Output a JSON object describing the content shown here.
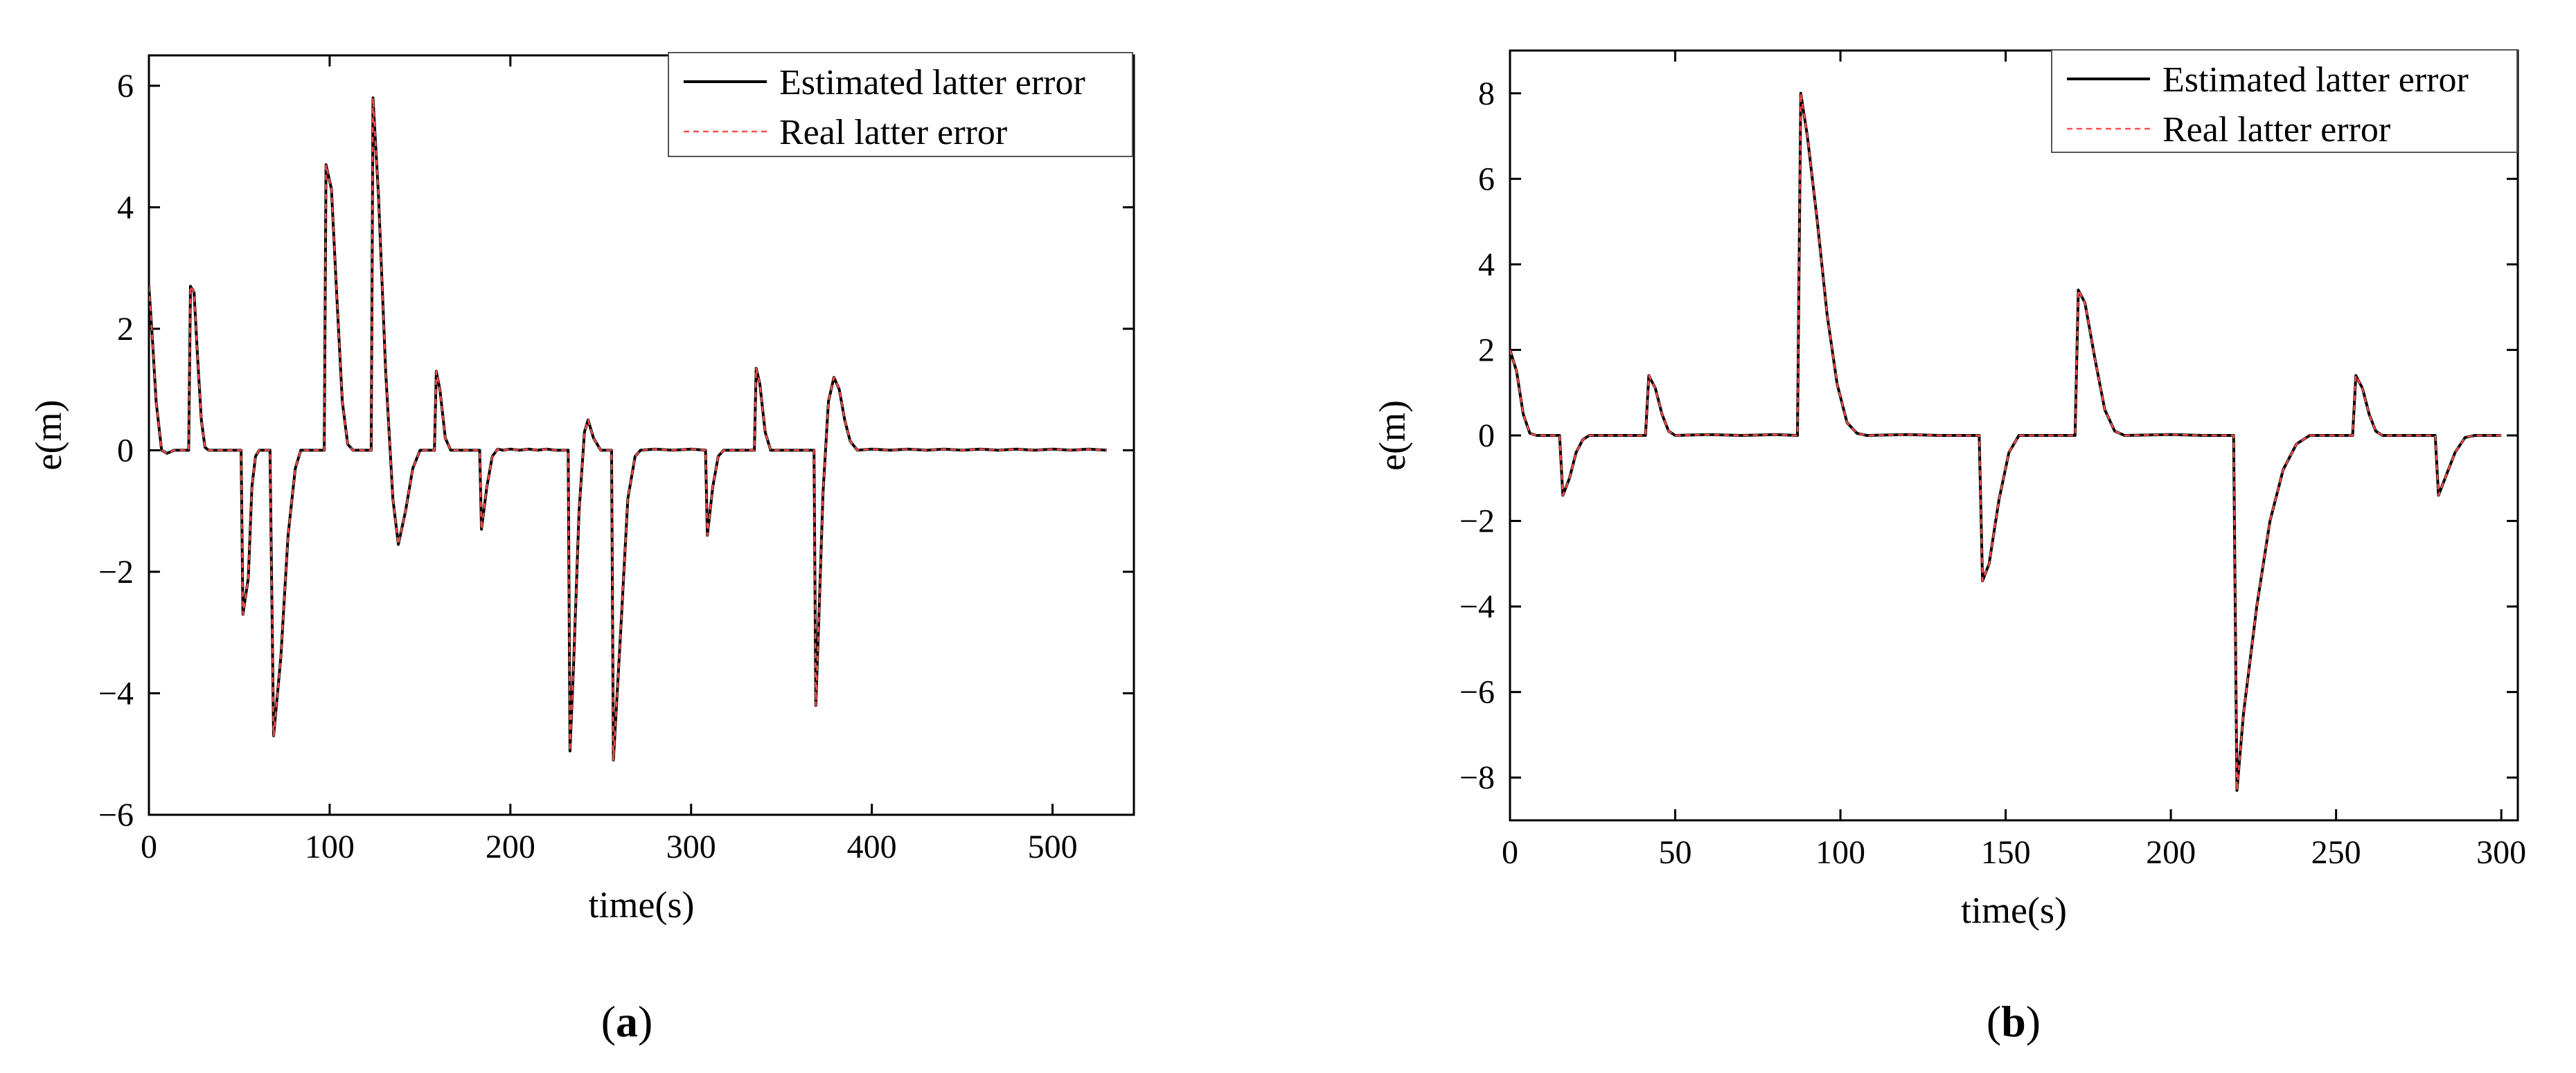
{
  "chart_data": [
    {
      "type": "line",
      "panel_label": "a",
      "xlabel": "time(s)",
      "ylabel": "e(m)",
      "xlim": [
        0,
        545
      ],
      "ylim": [
        -6,
        6.5
      ],
      "xticks": [
        0,
        100,
        200,
        300,
        400,
        500
      ],
      "yticks": [
        -6,
        -4,
        -2,
        0,
        2,
        4,
        6
      ],
      "grid": false,
      "legend_position": "top-right",
      "series": [
        {
          "name": "Estimated latter error",
          "color": "#000000",
          "dash": "solid",
          "points": [
            [
              0,
              2.7
            ],
            [
              2,
              1.8
            ],
            [
              4,
              0.8
            ],
            [
              7,
              0.0
            ],
            [
              10,
              -0.05
            ],
            [
              14,
              0.0
            ],
            [
              22,
              0.0
            ],
            [
              23,
              2.7
            ],
            [
              25,
              2.6
            ],
            [
              27,
              1.5
            ],
            [
              29,
              0.5
            ],
            [
              31,
              0.05
            ],
            [
              33,
              0.0
            ],
            [
              51,
              0.0
            ],
            [
              52,
              -2.7
            ],
            [
              55,
              -2.1
            ],
            [
              57,
              -0.6
            ],
            [
              59,
              -0.1
            ],
            [
              61,
              0.0
            ],
            [
              67,
              0.0
            ],
            [
              69,
              -4.7
            ],
            [
              73,
              -3.4
            ],
            [
              77,
              -1.4
            ],
            [
              81,
              -0.3
            ],
            [
              84,
              0.0
            ],
            [
              97,
              0.0
            ],
            [
              98,
              4.7
            ],
            [
              101,
              4.3
            ],
            [
              104,
              2.5
            ],
            [
              107,
              0.8
            ],
            [
              110,
              0.1
            ],
            [
              113,
              0.0
            ],
            [
              123,
              0.0
            ],
            [
              124,
              5.8
            ],
            [
              127,
              4.2
            ],
            [
              131,
              1.3
            ],
            [
              135,
              -0.8
            ],
            [
              138,
              -1.55
            ],
            [
              142,
              -1.0
            ],
            [
              146,
              -0.3
            ],
            [
              150,
              0.0
            ],
            [
              158,
              0.0
            ],
            [
              159,
              1.3
            ],
            [
              161,
              1.0
            ],
            [
              164,
              0.2
            ],
            [
              167,
              0.0
            ],
            [
              183,
              0.0
            ],
            [
              184,
              -1.3
            ],
            [
              187,
              -0.6
            ],
            [
              190,
              -0.1
            ],
            [
              193,
              0.02
            ],
            [
              196,
              0.0
            ],
            [
              200,
              0.02
            ],
            [
              205,
              0.0
            ],
            [
              210,
              0.02
            ],
            [
              215,
              0.0
            ],
            [
              220,
              0.02
            ],
            [
              225,
              0.0
            ],
            [
              232,
              0.0
            ],
            [
              233,
              -4.95
            ],
            [
              235,
              -3.5
            ],
            [
              238,
              -1.0
            ],
            [
              241,
              0.3
            ],
            [
              243,
              0.5
            ],
            [
              246,
              0.2
            ],
            [
              250,
              0.0
            ],
            [
              256,
              0.0
            ],
            [
              257,
              -5.1
            ],
            [
              261,
              -3.0
            ],
            [
              265,
              -0.8
            ],
            [
              269,
              -0.1
            ],
            [
              272,
              0.0
            ],
            [
              280,
              0.02
            ],
            [
              290,
              0.0
            ],
            [
              300,
              0.02
            ],
            [
              308,
              0.0
            ],
            [
              309,
              -1.4
            ],
            [
              312,
              -0.6
            ],
            [
              315,
              -0.1
            ],
            [
              318,
              0.0
            ],
            [
              335,
              0.0
            ],
            [
              336,
              1.35
            ],
            [
              338,
              1.1
            ],
            [
              341,
              0.3
            ],
            [
              344,
              0.0
            ],
            [
              368,
              0.0
            ],
            [
              369,
              -4.2
            ],
            [
              371,
              -2.5
            ],
            [
              373,
              -0.7
            ],
            [
              376,
              0.8
            ],
            [
              379,
              1.2
            ],
            [
              382,
              1.0
            ],
            [
              385,
              0.5
            ],
            [
              388,
              0.15
            ],
            [
              392,
              0.0
            ],
            [
              400,
              0.02
            ],
            [
              410,
              0.0
            ],
            [
              420,
              0.02
            ],
            [
              430,
              0.0
            ],
            [
              440,
              0.02
            ],
            [
              450,
              0.0
            ],
            [
              460,
              0.02
            ],
            [
              470,
              0.0
            ],
            [
              480,
              0.02
            ],
            [
              490,
              0.0
            ],
            [
              500,
              0.02
            ],
            [
              510,
              0.0
            ],
            [
              520,
              0.02
            ],
            [
              530,
              0.0
            ]
          ]
        },
        {
          "name": "Real latter error",
          "color": "#ff4d4d",
          "dash": "dashed",
          "follows_series": 0
        }
      ]
    },
    {
      "type": "line",
      "panel_label": "b",
      "xlabel": "time(s)",
      "ylabel": "e(m)",
      "xlim": [
        0,
        305
      ],
      "ylim": [
        -9,
        9
      ],
      "xticks": [
        0,
        50,
        100,
        150,
        200,
        250,
        300
      ],
      "yticks": [
        -8,
        -6,
        -4,
        -2,
        0,
        2,
        4,
        6,
        8
      ],
      "grid": false,
      "legend_position": "top-right",
      "series": [
        {
          "name": "Estimated latter error",
          "color": "#000000",
          "dash": "solid",
          "points": [
            [
              0,
              2.0
            ],
            [
              2,
              1.5
            ],
            [
              4,
              0.5
            ],
            [
              6,
              0.05
            ],
            [
              8,
              0.0
            ],
            [
              15,
              0.0
            ],
            [
              16,
              -1.4
            ],
            [
              18,
              -1.0
            ],
            [
              20,
              -0.4
            ],
            [
              22,
              -0.1
            ],
            [
              24,
              0.0
            ],
            [
              41,
              0.0
            ],
            [
              42,
              1.4
            ],
            [
              44,
              1.1
            ],
            [
              46,
              0.5
            ],
            [
              48,
              0.1
            ],
            [
              50,
              0.0
            ],
            [
              60,
              0.02
            ],
            [
              70,
              0.0
            ],
            [
              80,
              0.02
            ],
            [
              87,
              0.0
            ],
            [
              88,
              8.0
            ],
            [
              90,
              7.0
            ],
            [
              93,
              5.0
            ],
            [
              96,
              2.8
            ],
            [
              99,
              1.2
            ],
            [
              102,
              0.3
            ],
            [
              105,
              0.05
            ],
            [
              108,
              0.0
            ],
            [
              120,
              0.02
            ],
            [
              130,
              0.0
            ],
            [
              142,
              0.0
            ],
            [
              143,
              -3.4
            ],
            [
              145,
              -3.0
            ],
            [
              148,
              -1.5
            ],
            [
              151,
              -0.4
            ],
            [
              154,
              0.0
            ],
            [
              164,
              0.0
            ],
            [
              171,
              0.0
            ],
            [
              172,
              3.4
            ],
            [
              174,
              3.1
            ],
            [
              177,
              1.8
            ],
            [
              180,
              0.6
            ],
            [
              183,
              0.1
            ],
            [
              186,
              0.0
            ],
            [
              200,
              0.02
            ],
            [
              210,
              0.0
            ],
            [
              219,
              0.0
            ],
            [
              220,
              -8.3
            ],
            [
              222,
              -6.5
            ],
            [
              226,
              -4.0
            ],
            [
              230,
              -2.0
            ],
            [
              234,
              -0.8
            ],
            [
              238,
              -0.2
            ],
            [
              242,
              0.0
            ],
            [
              255,
              0.0
            ],
            [
              256,
              1.4
            ],
            [
              258,
              1.1
            ],
            [
              260,
              0.5
            ],
            [
              262,
              0.1
            ],
            [
              264,
              0.0
            ],
            [
              280,
              0.0
            ],
            [
              281,
              -1.4
            ],
            [
              283,
              -1.0
            ],
            [
              286,
              -0.4
            ],
            [
              289,
              -0.05
            ],
            [
              292,
              0.0
            ],
            [
              300,
              0.0
            ]
          ]
        },
        {
          "name": "Real latter error",
          "color": "#ff4d4d",
          "dash": "dashed",
          "follows_series": 0
        }
      ]
    }
  ]
}
